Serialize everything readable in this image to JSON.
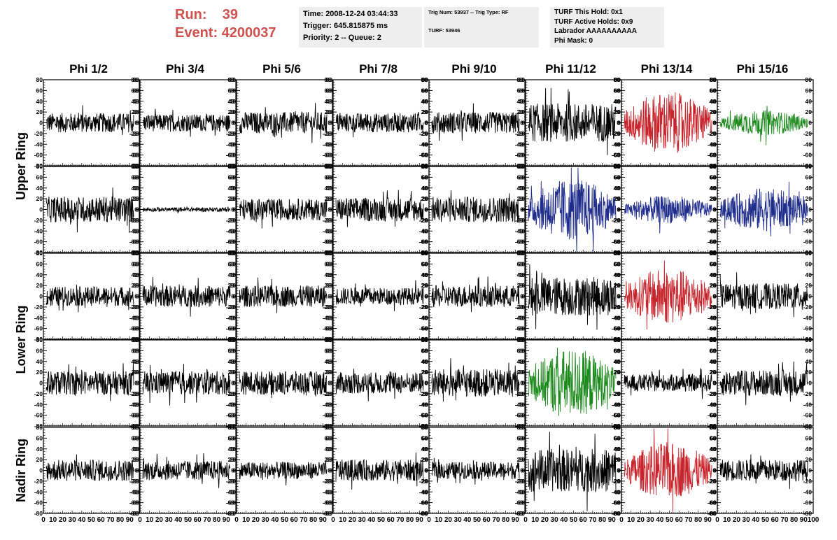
{
  "header": {
    "run_label": "Run:",
    "run_value": "39",
    "event_label": "Event:",
    "event_value": "4200037"
  },
  "info_time": {
    "time": "Time: 2008-12-24 03:44:33",
    "trigger": "Trigger: 645.815875 ms",
    "priority": "Priority: 2 -- Queue: 2"
  },
  "info_trig": {
    "line1": "Trig Num: 53937 -- Trig Type: RF",
    "line2": "TURF: 53946"
  },
  "info_turf": {
    "this_hold": "TURF This Hold: 0x1",
    "active_holds": "TURF Active Holds: 0x9",
    "labrador": "Labrador AAAAAAAAAA",
    "phi_mask": "Phi Mask: 0"
  },
  "chart_data": {
    "type": "line",
    "columns": [
      "Phi 1/2",
      "Phi 3/4",
      "Phi 5/6",
      "Phi 7/8",
      "Phi 9/10",
      "Phi 11/12",
      "Phi 13/14",
      "Phi 15/16"
    ],
    "rows": [
      "Upper Ring",
      "Upper Ring",
      "Lower Ring",
      "Lower Ring",
      "Nadir Ring"
    ],
    "ring_labels": [
      {
        "text": "Upper Ring",
        "rows": [
          0,
          1
        ]
      },
      {
        "text": "Lower Ring",
        "rows": [
          2,
          3
        ]
      },
      {
        "text": "Nadir Ring",
        "rows": [
          4
        ]
      }
    ],
    "ylim": [
      -80,
      80
    ],
    "yticks": [
      -80,
      -60,
      -40,
      -20,
      0,
      20,
      40,
      60,
      80
    ],
    "xlim": [
      0,
      100
    ],
    "xticks": [
      0,
      10,
      20,
      30,
      40,
      50,
      60,
      70,
      80,
      90
    ],
    "last_xtick": 100,
    "trace_colors": {
      "normal": "#000000",
      "red": "#c8242b",
      "blue": "#1f2d8c",
      "green": "#1d8a1d"
    },
    "panels": [
      [
        {
          "c": "normal",
          "a": 9
        },
        {
          "c": "normal",
          "a": 8
        },
        {
          "c": "normal",
          "a": 10
        },
        {
          "c": "normal",
          "a": 9
        },
        {
          "c": "normal",
          "a": 10
        },
        {
          "c": "normal",
          "a": 18
        },
        {
          "c": "red",
          "a": 20
        },
        {
          "c": "green",
          "a": 8
        }
      ],
      [
        {
          "c": "normal",
          "a": 12
        },
        {
          "c": "normal",
          "a": 2
        },
        {
          "c": "normal",
          "a": 10
        },
        {
          "c": "normal",
          "a": 11
        },
        {
          "c": "normal",
          "a": 12
        },
        {
          "c": "blue",
          "a": 20
        },
        {
          "c": "blue",
          "a": 9
        },
        {
          "c": "blue",
          "a": 14
        }
      ],
      [
        {
          "c": "normal",
          "a": 9
        },
        {
          "c": "normal",
          "a": 10
        },
        {
          "c": "normal",
          "a": 10
        },
        {
          "c": "normal",
          "a": 8
        },
        {
          "c": "normal",
          "a": 10
        },
        {
          "c": "normal",
          "a": 18
        },
        {
          "c": "red",
          "a": 18
        },
        {
          "c": "normal",
          "a": 12
        }
      ],
      [
        {
          "c": "normal",
          "a": 11
        },
        {
          "c": "normal",
          "a": 11
        },
        {
          "c": "normal",
          "a": 11
        },
        {
          "c": "normal",
          "a": 10
        },
        {
          "c": "normal",
          "a": 13
        },
        {
          "c": "green",
          "a": 22
        },
        {
          "c": "normal",
          "a": 8
        },
        {
          "c": "normal",
          "a": 12
        }
      ],
      [
        {
          "c": "normal",
          "a": 10
        },
        {
          "c": "normal",
          "a": 9
        },
        {
          "c": "normal",
          "a": 8
        },
        {
          "c": "normal",
          "a": 10
        },
        {
          "c": "normal",
          "a": 8
        },
        {
          "c": "normal",
          "a": 20
        },
        {
          "c": "red",
          "a": 18
        },
        {
          "c": "normal",
          "a": 10
        }
      ]
    ]
  }
}
